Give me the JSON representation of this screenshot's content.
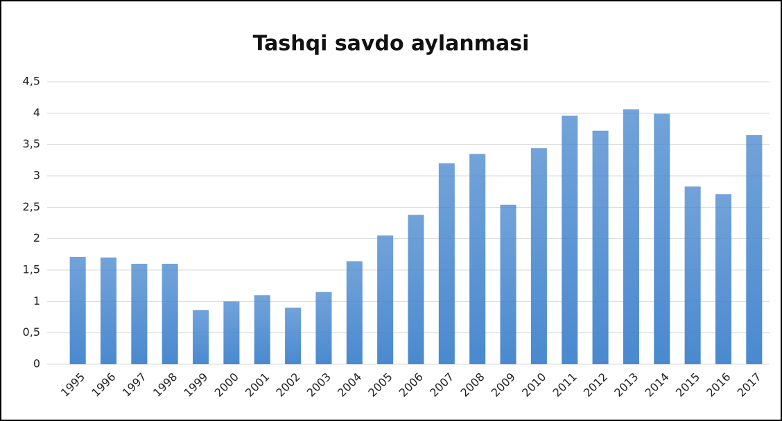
{
  "chart_data": {
    "type": "bar",
    "title": "Tashqi savdo aylanmasi",
    "categories": [
      "1995",
      "1996",
      "1997",
      "1998",
      "1999",
      "2000",
      "2001",
      "2002",
      "2003",
      "2004",
      "2005",
      "2006",
      "2007",
      "2008",
      "2009",
      "2010",
      "2011",
      "2012",
      "2013",
      "2014",
      "2015",
      "2016",
      "2017"
    ],
    "values": [
      1.71,
      1.7,
      1.6,
      1.6,
      0.86,
      1.0,
      1.1,
      0.9,
      1.15,
      1.64,
      2.05,
      2.38,
      3.2,
      3.35,
      2.54,
      3.44,
      3.96,
      3.72,
      4.06,
      3.99,
      2.83,
      2.71,
      3.65
    ],
    "color": "#4a89cf",
    "ylim": [
      0,
      4.5
    ],
    "yticks": [
      0,
      {
        "value": 0.5,
        "label": "0,5"
      },
      1,
      {
        "value": 1.5,
        "label": "1,5"
      },
      2,
      {
        "value": 2.5,
        "label": "2,5"
      },
      3,
      {
        "value": 3.5,
        "label": "3,5"
      },
      4,
      {
        "value": 4.5,
        "label": "4,5"
      }
    ],
    "grid": true
  }
}
